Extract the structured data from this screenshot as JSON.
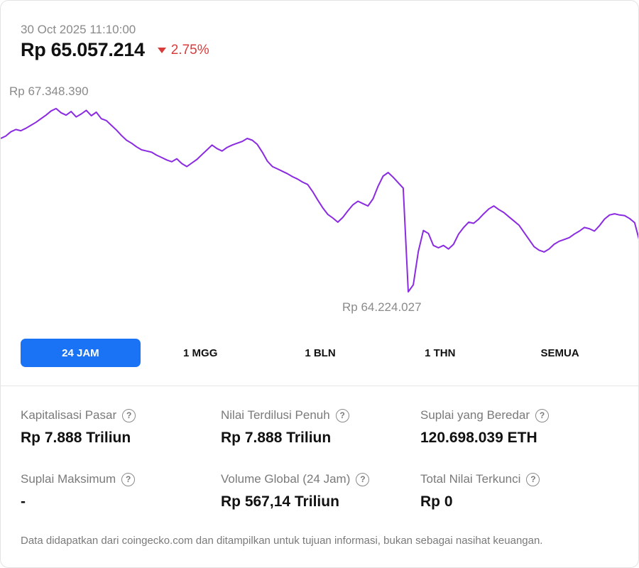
{
  "header": {
    "timestamp": "30 Oct 2025 11:10:00",
    "price": "Rp 65.057.214",
    "change": "2.75%",
    "change_direction": "down",
    "change_color": "#d93b3b"
  },
  "chart_data": {
    "type": "line",
    "series_color": "#8a2be2",
    "high_label": "Rp 67.348.390",
    "low_label": "Rp 64.224.027",
    "high_value": 67348390,
    "low_value": 64224027,
    "x_range": [
      "30 Oct 2025 (24 jam)"
    ],
    "values": [
      66790000,
      66830000,
      66900000,
      66940000,
      66920000,
      66960000,
      67010000,
      67060000,
      67120000,
      67180000,
      67250000,
      67290000,
      67220000,
      67180000,
      67240000,
      67150000,
      67200000,
      67260000,
      67170000,
      67230000,
      67120000,
      67090000,
      67010000,
      66930000,
      66840000,
      66760000,
      66710000,
      66650000,
      66600000,
      66580000,
      66560000,
      66510000,
      66470000,
      66430000,
      66400000,
      66450000,
      66370000,
      66320000,
      66380000,
      66440000,
      66520000,
      66600000,
      66680000,
      66620000,
      66580000,
      66640000,
      66680000,
      66710000,
      66740000,
      66790000,
      66760000,
      66690000,
      66560000,
      66410000,
      66320000,
      66280000,
      66240000,
      66200000,
      66150000,
      66110000,
      66060000,
      66020000,
      65900000,
      65760000,
      65630000,
      65520000,
      65460000,
      65390000,
      65470000,
      65580000,
      65680000,
      65740000,
      65700000,
      65660000,
      65780000,
      65990000,
      66160000,
      66220000,
      66140000,
      66050000,
      65960000,
      64224027,
      64340000,
      64900000,
      65250000,
      65200000,
      65000000,
      64960000,
      65000000,
      64940000,
      65020000,
      65190000,
      65300000,
      65390000,
      65370000,
      65440000,
      65530000,
      65610000,
      65660000,
      65600000,
      65550000,
      65480000,
      65410000,
      65340000,
      65220000,
      65100000,
      64980000,
      64920000,
      64890000,
      64940000,
      65020000,
      65070000,
      65100000,
      65130000,
      65190000,
      65240000,
      65300000,
      65280000,
      65240000,
      65330000,
      65440000,
      65510000,
      65530000,
      65510000,
      65500000,
      65450000,
      65380000,
      65057214
    ]
  },
  "tabs": [
    {
      "label": "24 JAM",
      "active": true
    },
    {
      "label": "1 MGG",
      "active": false
    },
    {
      "label": "1 BLN",
      "active": false
    },
    {
      "label": "1 THN",
      "active": false
    },
    {
      "label": "SEMUA",
      "active": false
    }
  ],
  "stats": [
    {
      "label": "Kapitalisasi Pasar",
      "value": "Rp 7.888 Triliun"
    },
    {
      "label": "Nilai Terdilusi Penuh",
      "value": "Rp 7.888 Triliun"
    },
    {
      "label": "Suplai yang Beredar",
      "value": "120.698.039 ETH"
    },
    {
      "label": "Suplai Maksimum",
      "value": "-"
    },
    {
      "label": "Volume Global (24 Jam)",
      "value": "Rp 567,14 Triliun"
    },
    {
      "label": "Total Nilai Terkunci",
      "value": "Rp 0"
    }
  ],
  "help_icon": "question-circle-icon",
  "accent_color": "#1a73f5",
  "footer": "Data didapatkan dari coingecko.com dan ditampilkan untuk tujuan informasi, bukan sebagai nasihat keuangan."
}
